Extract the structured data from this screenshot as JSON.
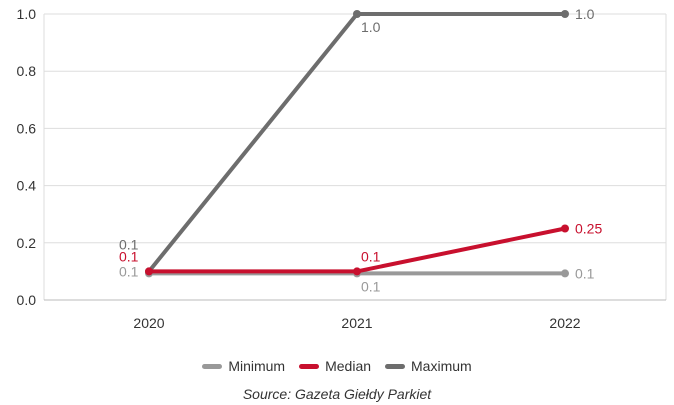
{
  "chart_data": {
    "type": "line",
    "categories": [
      "2020",
      "2021",
      "2022"
    ],
    "series": [
      {
        "name": "Minimum",
        "values": [
          0.1,
          0.1,
          0.1
        ],
        "color": "#999999",
        "labels": [
          "0.1",
          "0.1",
          "0.1"
        ]
      },
      {
        "name": "Median",
        "values": [
          0.1,
          0.1,
          0.25
        ],
        "color": "#c8102e",
        "labels": [
          "0.1",
          "0.1",
          "0.25"
        ]
      },
      {
        "name": "Maximum",
        "values": [
          0.1,
          1.0,
          1.0
        ],
        "color": "#6d6d6d",
        "labels": [
          "0.1",
          "1.0",
          "1.0"
        ]
      }
    ],
    "y_ticks": [
      "0.0",
      "0.2",
      "0.4",
      "0.6",
      "0.8",
      "1.0"
    ],
    "ylim": [
      0,
      1.0
    ],
    "grid": true,
    "legend_position": "bottom"
  },
  "source_text": "Source: Gazeta Giełdy Parkiet"
}
